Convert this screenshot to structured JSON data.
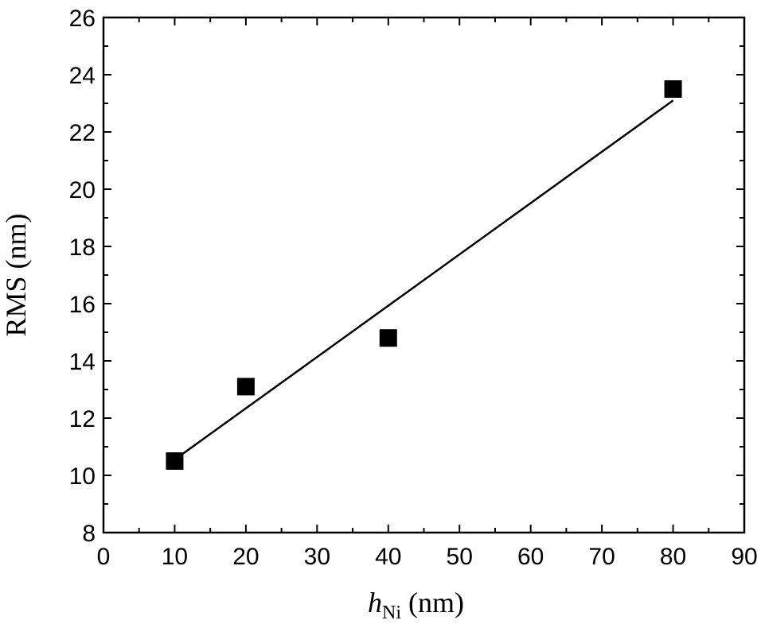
{
  "chart_data": {
    "type": "scatter",
    "title": "",
    "xlabel": {
      "main": "h",
      "sub": "Ni",
      "unit": " (nm)"
    },
    "ylabel": "RMS (nm)",
    "xlim": [
      0,
      90
    ],
    "ylim": [
      8,
      26
    ],
    "x_ticks": [
      0,
      10,
      20,
      30,
      40,
      50,
      60,
      70,
      80,
      90
    ],
    "y_ticks": [
      8,
      10,
      12,
      14,
      16,
      18,
      20,
      22,
      24,
      26
    ],
    "x_minor_step": 5,
    "y_minor_step": 1,
    "grid": false,
    "legend": false,
    "series": [
      {
        "marker": "square",
        "color": "#000000",
        "points": [
          {
            "x": 10,
            "y": 10.5
          },
          {
            "x": 20,
            "y": 13.1
          },
          {
            "x": 40,
            "y": 14.8
          },
          {
            "x": 80,
            "y": 23.5
          }
        ]
      }
    ],
    "fit_line": {
      "color": "#000000",
      "points": [
        {
          "x": 10,
          "y": 10.55
        },
        {
          "x": 80,
          "y": 23.1
        }
      ]
    }
  }
}
